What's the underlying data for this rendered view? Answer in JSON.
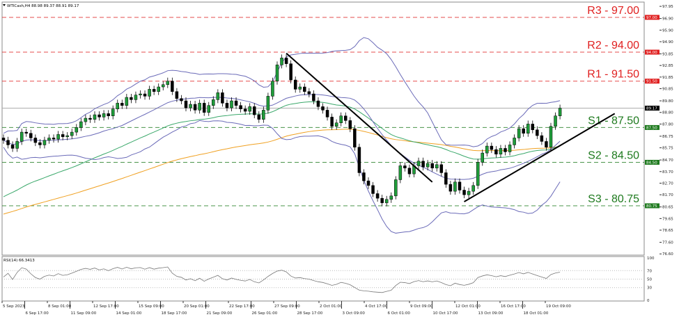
{
  "header": {
    "symbol_info": "WTICash,H4  88.98 89.37 88.91 89.17"
  },
  "rsi_header": "RSI(14) 66.3413",
  "colors": {
    "resistance": "#e02020",
    "support": "#1e7a1e",
    "bull": "#1f9d3a",
    "bear": "#000000",
    "bollinger": "#6a6ab8",
    "ma_fast": "#3aa86a",
    "ma_slow": "#f0a020",
    "trendline": "#000000"
  },
  "chart_data": {
    "type": "candlestick",
    "timeframe": "H4",
    "current_price": "89.17",
    "ylim": [
      76.6,
      97.95
    ],
    "price_axis_labels": [
      "97.95",
      "96.90",
      "95.90",
      "94.90",
      "93.85",
      "92.85",
      "91.85",
      "90.85",
      "89.80",
      "88.80",
      "87.80",
      "86.75",
      "85.75",
      "84.70",
      "83.70",
      "82.70",
      "81.70",
      "80.65",
      "79.65",
      "78.65",
      "77.60",
      "76.60"
    ],
    "x_tick_labels": [
      "5 Sep 2023",
      "6 Sep 17:00",
      "8 Sep 01:00",
      "11 Sep 09:00",
      "12 Sep 17:00",
      "14 Sep 01:00",
      "15 Sep 09:00",
      "18 Sep 17:00",
      "20 Sep 01:00",
      "21 Sep 09:00",
      "22 Sep 17:00",
      "26 Sep 01:00",
      "27 Sep 09:00",
      "28 Sep 17:00",
      "2 Oct 01:00",
      "3 Oct 09:00",
      "4 Oct 17:00",
      "6 Oct 01:00",
      "9 Oct 09:00",
      "10 Oct 17:00",
      "12 Oct 01:00",
      "13 Oct 09:00",
      "16 Oct 17:00",
      "18 Oct 01:00",
      "19 Oct 09:00"
    ],
    "closes": [
      86.4,
      86.0,
      85.7,
      86.3,
      87.1,
      87.0,
      86.6,
      86.2,
      86.0,
      86.4,
      86.6,
      86.5,
      86.9,
      86.7,
      86.8,
      87.1,
      87.5,
      88.0,
      88.3,
      88.2,
      88.6,
      88.4,
      88.7,
      88.5,
      89.1,
      89.6,
      89.4,
      90.1,
      89.9,
      90.3,
      90.4,
      90.2,
      90.8,
      90.6,
      91.0,
      91.2,
      91.5,
      90.6,
      90.0,
      89.8,
      89.2,
      89.5,
      89.0,
      89.6,
      88.8,
      89.4,
      89.9,
      90.5,
      89.6,
      89.2,
      89.8,
      89.4,
      89.1,
      88.9,
      89.3,
      88.6,
      88.2,
      89.0,
      90.2,
      91.5,
      92.9,
      93.5,
      93.0,
      91.6,
      90.8,
      91.0,
      90.6,
      90.4,
      89.8,
      89.3,
      89.0,
      88.4,
      87.6,
      87.9,
      88.5,
      88.1,
      87.4,
      85.8,
      83.6,
      82.9,
      82.5,
      81.8,
      81.4,
      81.0,
      81.3,
      81.6,
      83.0,
      84.2,
      84.0,
      83.5,
      84.2,
      84.6,
      84.1,
      84.4,
      84.0,
      84.3,
      83.6,
      82.6,
      82.0,
      82.8,
      82.1,
      81.7,
      82.0,
      82.5,
      84.5,
      85.3,
      85.9,
      85.6,
      85.2,
      85.7,
      85.4,
      86.0,
      86.6,
      87.4,
      87.0,
      87.8,
      87.3,
      86.8,
      86.3,
      85.8,
      87.6,
      88.5,
      89.17
    ],
    "levels": [
      {
        "label": "R3 - 97.00",
        "price": 97.0,
        "tag": "97.00",
        "kind": "resistance"
      },
      {
        "label": "R2 - 94.00",
        "price": 94.0,
        "tag": "94.00",
        "kind": "resistance"
      },
      {
        "label": "R1 - 91.50",
        "price": 91.5,
        "tag": "91.50",
        "kind": "resistance"
      },
      {
        "label": "S1 - 87.50",
        "price": 87.5,
        "tag": "87.50",
        "kind": "support"
      },
      {
        "label": "S2 - 84.50",
        "price": 84.5,
        "tag": "84.50",
        "kind": "support"
      },
      {
        "label": "S3 - 80.75",
        "price": 80.75,
        "tag": "80.75",
        "kind": "support"
      }
    ],
    "trendlines": [
      {
        "from": {
          "candle": 62,
          "price": 93.9
        },
        "to": {
          "candle": 94,
          "price": 82.8
        }
      },
      {
        "from": {
          "candle": 101,
          "price": 81.1
        },
        "to": {
          "candle": 134,
          "price": 88.7
        }
      }
    ],
    "rsi": {
      "ylim": [
        0,
        100
      ],
      "levels": [
        70,
        50,
        30
      ],
      "axis_labels": [
        "100",
        "70",
        "50",
        "30",
        "0"
      ],
      "last": 66.3413
    }
  }
}
